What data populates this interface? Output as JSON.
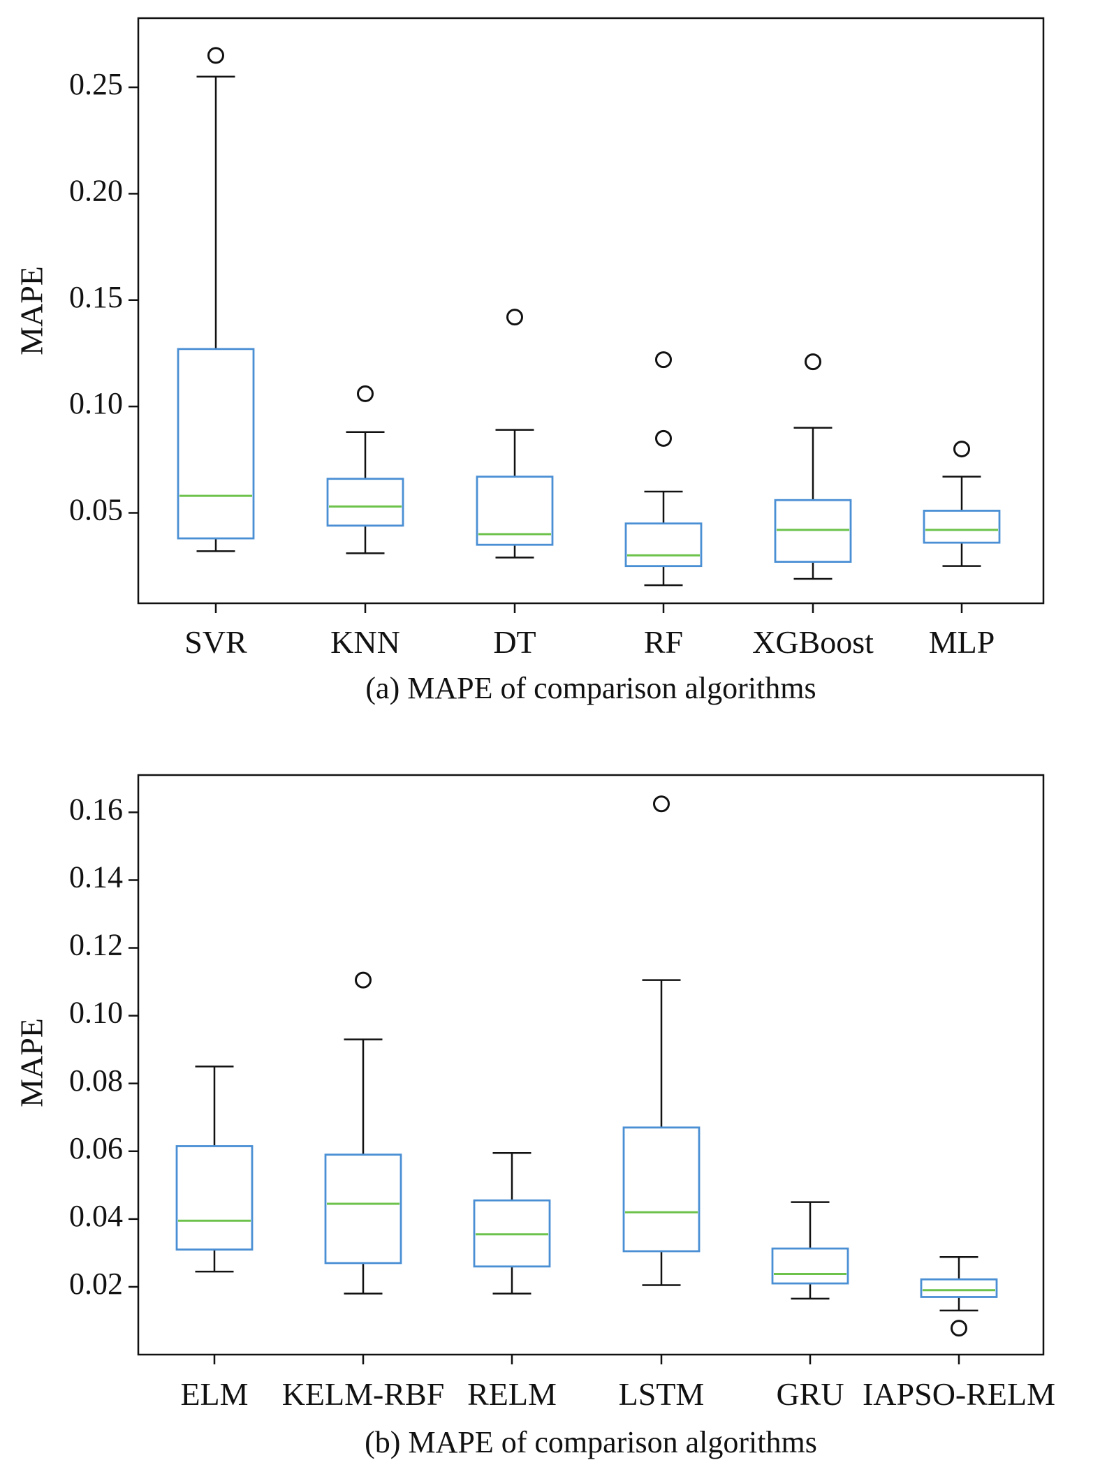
{
  "colors": {
    "box": "#4a8fd4",
    "median": "#6cc24a",
    "whisker": "#111111",
    "outlier": "#111111",
    "axes": "#111111",
    "background": "#ffffff"
  },
  "chart_data": [
    {
      "type": "box",
      "caption": "(a) MAPE of comparison algorithms",
      "ylabel": "MAPE",
      "xlabel": "",
      "ylim": [
        0.0075,
        0.2825
      ],
      "yticks": [
        0.05,
        0.1,
        0.15,
        0.2,
        0.25
      ],
      "ytick_labels": [
        "0.05",
        "0.10",
        "0.15",
        "0.20",
        "0.25"
      ],
      "grid": false,
      "categories": [
        "SVR",
        "KNN",
        "DT",
        "RF",
        "XGBoost",
        "MLP"
      ],
      "boxes": [
        {
          "name": "SVR",
          "whislo": 0.032,
          "q1": 0.038,
          "med": 0.058,
          "q3": 0.127,
          "whishi": 0.255,
          "fliers": [
            0.265
          ]
        },
        {
          "name": "KNN",
          "whislo": 0.031,
          "q1": 0.044,
          "med": 0.053,
          "q3": 0.066,
          "whishi": 0.088,
          "fliers": [
            0.106
          ]
        },
        {
          "name": "DT",
          "whislo": 0.029,
          "q1": 0.035,
          "med": 0.04,
          "q3": 0.067,
          "whishi": 0.089,
          "fliers": [
            0.142
          ]
        },
        {
          "name": "RF",
          "whislo": 0.016,
          "q1": 0.025,
          "med": 0.03,
          "q3": 0.045,
          "whishi": 0.06,
          "fliers": [
            0.085,
            0.122
          ]
        },
        {
          "name": "XGBoost",
          "whislo": 0.019,
          "q1": 0.027,
          "med": 0.042,
          "q3": 0.056,
          "whishi": 0.09,
          "fliers": [
            0.121
          ]
        },
        {
          "name": "MLP",
          "whislo": 0.025,
          "q1": 0.036,
          "med": 0.042,
          "q3": 0.051,
          "whishi": 0.067,
          "fliers": [
            0.08
          ]
        }
      ]
    },
    {
      "type": "box",
      "caption": "(b) MAPE of comparison algorithms",
      "ylabel": "MAPE",
      "xlabel": "",
      "ylim": [
        0.0,
        0.171
      ],
      "yticks": [
        0.02,
        0.04,
        0.06,
        0.08,
        0.1,
        0.12,
        0.14,
        0.16
      ],
      "ytick_labels": [
        "0.02",
        "0.04",
        "0.06",
        "0.08",
        "0.10",
        "0.12",
        "0.14",
        "0.16"
      ],
      "grid": false,
      "categories": [
        "ELM",
        "KELM-RBF",
        "RELM",
        "LSTM",
        "GRU",
        "IAPSO-RELM"
      ],
      "boxes": [
        {
          "name": "ELM",
          "whislo": 0.0245,
          "q1": 0.031,
          "med": 0.0395,
          "q3": 0.0615,
          "whishi": 0.085,
          "fliers": []
        },
        {
          "name": "KELM-RBF",
          "whislo": 0.018,
          "q1": 0.027,
          "med": 0.0445,
          "q3": 0.059,
          "whishi": 0.093,
          "fliers": [
            0.1105
          ]
        },
        {
          "name": "RELM",
          "whislo": 0.018,
          "q1": 0.026,
          "med": 0.0355,
          "q3": 0.0455,
          "whishi": 0.0595,
          "fliers": []
        },
        {
          "name": "LSTM",
          "whislo": 0.0205,
          "q1": 0.0305,
          "med": 0.042,
          "q3": 0.067,
          "whishi": 0.1105,
          "fliers": [
            0.1625
          ]
        },
        {
          "name": "GRU",
          "whislo": 0.0165,
          "q1": 0.021,
          "med": 0.0238,
          "q3": 0.0313,
          "whishi": 0.045,
          "fliers": []
        },
        {
          "name": "IAPSO-RELM",
          "whislo": 0.013,
          "q1": 0.017,
          "med": 0.019,
          "q3": 0.0222,
          "whishi": 0.0288,
          "fliers": [
            0.0078
          ]
        }
      ]
    }
  ]
}
